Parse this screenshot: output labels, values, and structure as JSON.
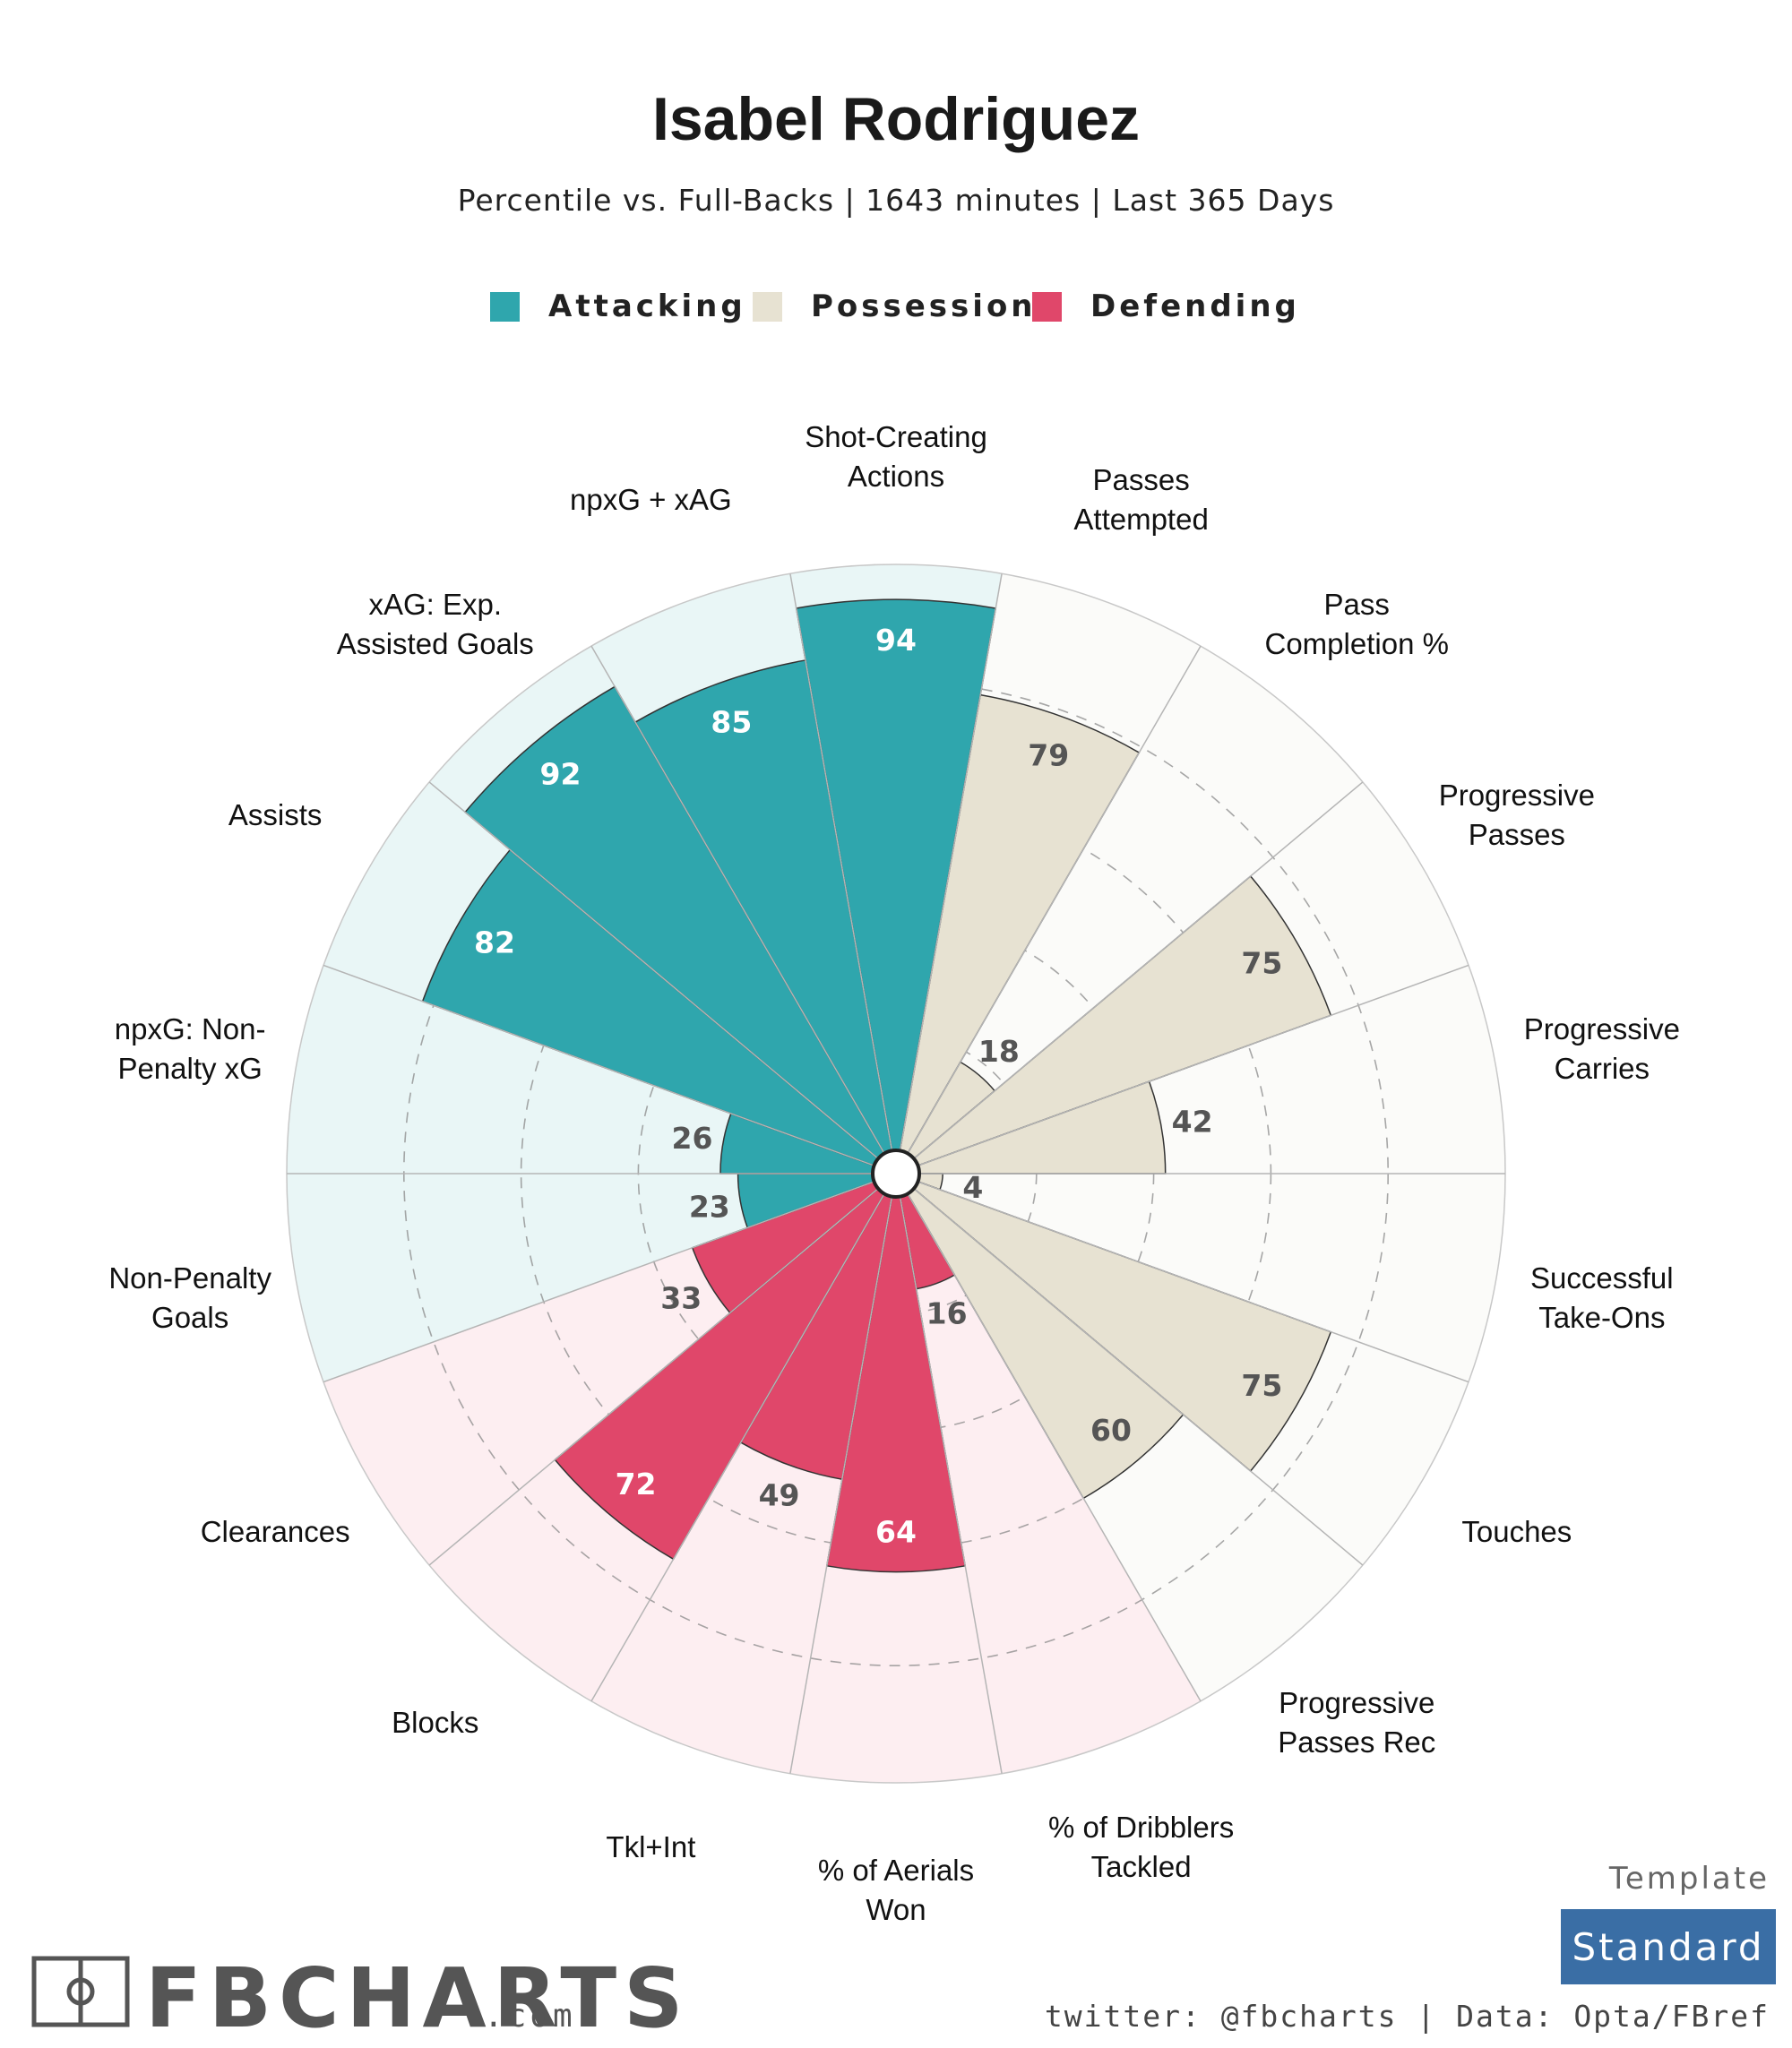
{
  "header": {
    "title": "Isabel Rodriguez",
    "subtitle": "Percentile vs. Full-Backs | 1643 minutes | Last 365 Days"
  },
  "legend": [
    {
      "name": "Attacking",
      "color": "#2fa6ad"
    },
    {
      "name": "Possession",
      "color": "#e7e2d2"
    },
    {
      "name": "Defending",
      "color": "#e0476a"
    }
  ],
  "chart_data": {
    "type": "polar-bar",
    "title": "Isabel Rodriguez",
    "rlim": [
      0,
      100
    ],
    "rings": [
      20,
      40,
      60,
      80
    ],
    "groups": {
      "Attacking": {
        "bar_color": "#2fa6ad",
        "bg_color": "#e9f6f6",
        "label_color": "#ffffff",
        "low_label_color": "#555555"
      },
      "Possession": {
        "bar_color": "#e7e2d2",
        "bg_color": "#fbfbf9",
        "label_color": "#555555",
        "low_label_color": "#555555"
      },
      "Defending": {
        "bar_color": "#e0476a",
        "bg_color": "#fdeef1",
        "label_color": "#ffffff",
        "low_label_color": "#555555"
      }
    },
    "categories": [
      {
        "label": "Shot-Creating\nActions",
        "group": "Attacking",
        "value": 94
      },
      {
        "label": "Passes\nAttempted",
        "group": "Possession",
        "value": 79
      },
      {
        "label": "Pass\nCompletion %",
        "group": "Possession",
        "value": 18
      },
      {
        "label": "Progressive\nPasses",
        "group": "Possession",
        "value": 75
      },
      {
        "label": "Progressive\nCarries",
        "group": "Possession",
        "value": 42
      },
      {
        "label": "Successful\nTake-Ons",
        "group": "Possession",
        "value": 4
      },
      {
        "label": "Touches",
        "group": "Possession",
        "value": 75
      },
      {
        "label": "Progressive\nPasses Rec",
        "group": "Possession",
        "value": 60
      },
      {
        "label": "% of Dribblers\nTackled",
        "group": "Defending",
        "value": 16
      },
      {
        "label": "% of Aerials\nWon",
        "group": "Defending",
        "value": 64
      },
      {
        "label": "Tkl+Int",
        "group": "Defending",
        "value": 49
      },
      {
        "label": "Blocks",
        "group": "Defending",
        "value": 72
      },
      {
        "label": "Clearances",
        "group": "Defending",
        "value": 33
      },
      {
        "label": "Non-Penalty\nGoals",
        "group": "Attacking",
        "value": 23
      },
      {
        "label": "npxG: Non-\nPenalty xG",
        "group": "Attacking",
        "value": 26
      },
      {
        "label": "Assists",
        "group": "Attacking",
        "value": 82
      },
      {
        "label": "xAG: Exp.\nAssisted Goals",
        "group": "Attacking",
        "value": 92
      },
      {
        "label": "npxG + xAG",
        "group": "Attacking",
        "value": 85
      }
    ]
  },
  "footer": {
    "logo_text": "FBCHARTS",
    "logo_domain": ".com",
    "credits": "twitter: @fbcharts | Data: Opta/FBref",
    "template_label": "Template",
    "template_value": "Standard",
    "template_color": "#3a6ea5"
  }
}
